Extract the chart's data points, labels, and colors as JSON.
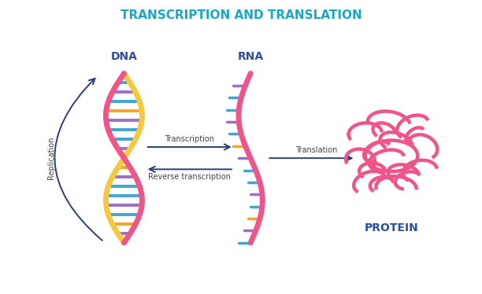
{
  "title": "TRANSCRIPTION AND TRANSLATION",
  "title_color": "#1aa7c0",
  "title_fontsize": 11,
  "bg_color": "#ffffff",
  "dna_label": "DNA",
  "rna_label": "RNA",
  "protein_label": "PROTEIN",
  "label_color": "#2c4fa0",
  "label_fontsize": 10,
  "arrow_color": "#2c4070",
  "transcription_label": "Transcription",
  "rev_transcription_label": "Reverse transcription",
  "translation_label": "Translation",
  "replication_label": "Replication",
  "arrow_label_fontsize": 7,
  "strand_pink": "#f0558a",
  "strand_yellow": "#f5c842",
  "bar_colors": [
    "#42a5d5",
    "#9c6fc4",
    "#f5a623",
    "#42a5d5",
    "#9c6fc4",
    "#42a5d5"
  ],
  "protein_color": "#f0558a"
}
